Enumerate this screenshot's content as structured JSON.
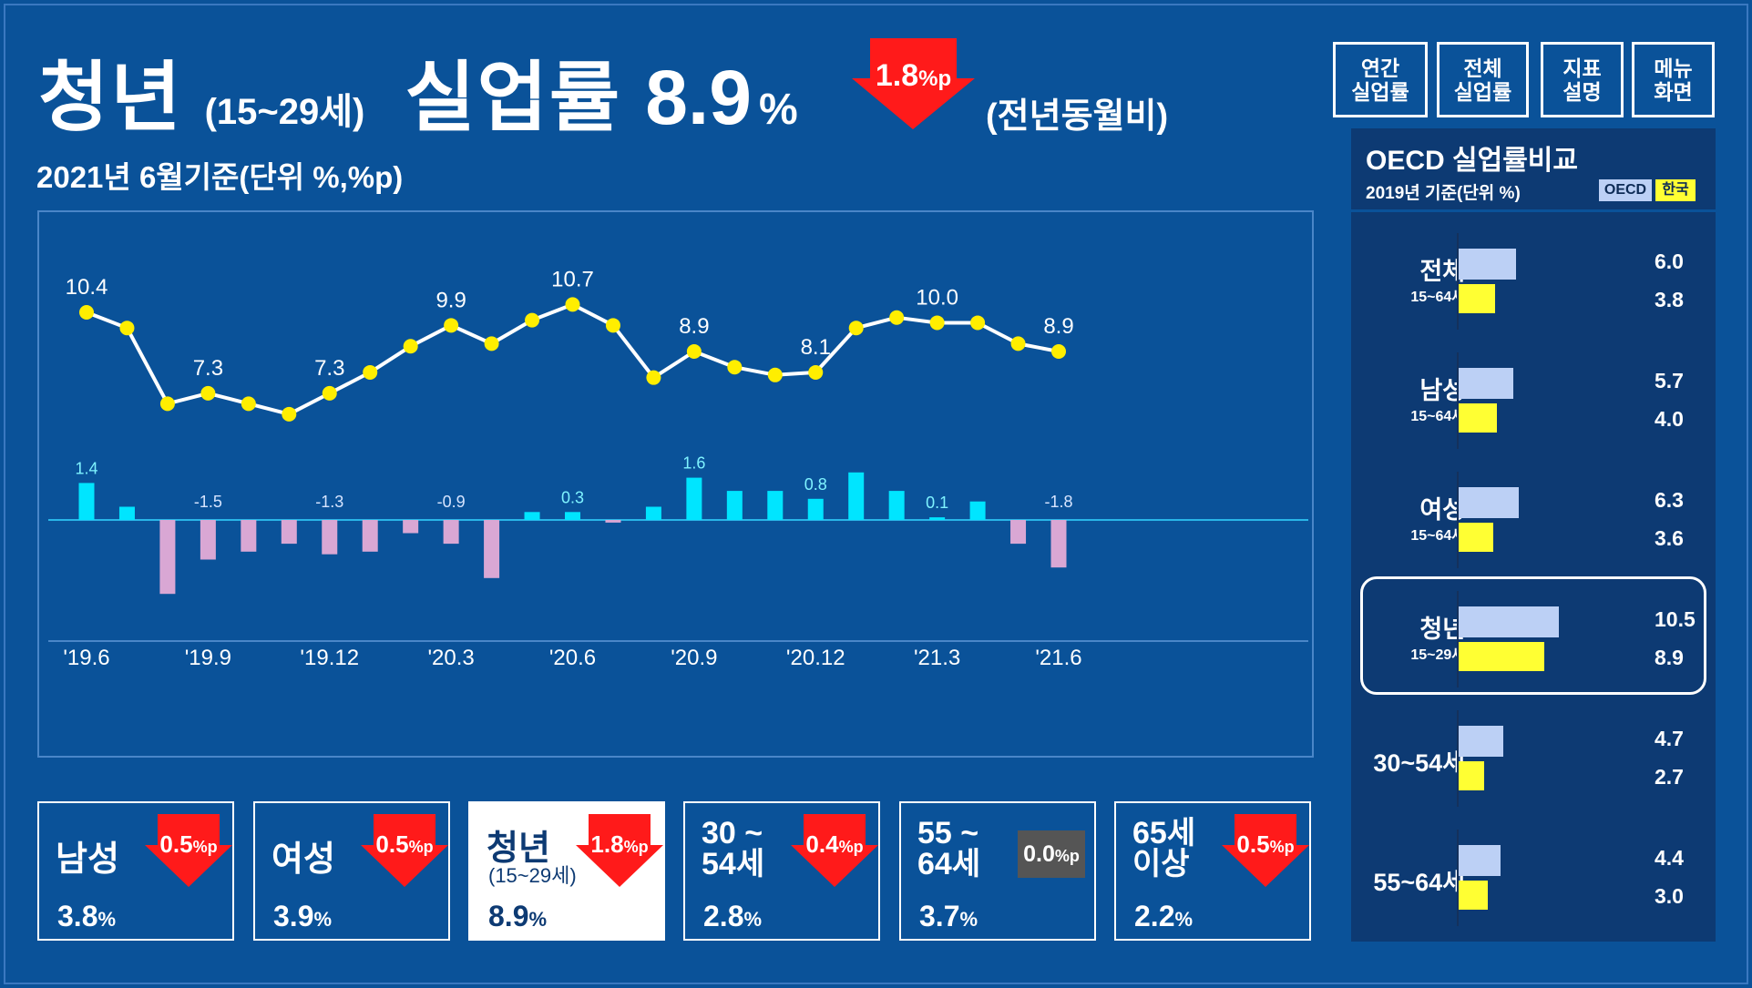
{
  "header": {
    "title_word1": "청년",
    "title_age": "(15~29세)",
    "title_word2": "실업률",
    "value": "8.9",
    "value_unit": "%",
    "change": "1.8",
    "change_unit": "%p",
    "compare_note": "(전년동월비)",
    "subtitle": "2021년 6월기준(단위 %,%p)"
  },
  "menu": [
    {
      "label": "연간\n실업률"
    },
    {
      "label": "전체\n실업률"
    },
    {
      "label": "지표\n설명"
    },
    {
      "label": "메뉴\n화면"
    }
  ],
  "chart_data": {
    "type": "line+bar",
    "x": [
      "'19.6",
      "'19.7",
      "'19.8",
      "'19.9",
      "'19.10",
      "'19.11",
      "'19.12",
      "'20.1",
      "'20.2",
      "'20.3",
      "'20.4",
      "'20.5",
      "'20.6",
      "'20.7",
      "'20.8",
      "'20.9",
      "'20.10",
      "'20.11",
      "'20.12",
      "'21.1",
      "'21.2",
      "'21.3",
      "'21.4",
      "'21.5",
      "'21.6"
    ],
    "xtick_labels": [
      "'19.6",
      "",
      "",
      "'19.9",
      "",
      "",
      "'19.12",
      "",
      "",
      "'20.3",
      "",
      "",
      "'20.6",
      "",
      "",
      "'20.9",
      "",
      "",
      "'20.12",
      "",
      "",
      "'21.3",
      "",
      "",
      "'21.6"
    ],
    "series": [
      {
        "values": [
          10.4,
          9.8,
          6.9,
          7.3,
          6.9,
          6.5,
          7.3,
          8.1,
          9.1,
          9.9,
          9.2,
          10.1,
          10.7,
          9.9,
          7.9,
          8.9,
          8.3,
          8.0,
          8.1,
          9.8,
          10.2,
          10.0,
          10.0,
          9.2,
          8.9
        ],
        "labels": [
          "10.4",
          "",
          "",
          "7.3",
          "",
          "",
          "7.3",
          "",
          "",
          "9.9",
          "",
          "",
          "10.7",
          "",
          "",
          "8.9",
          "",
          "",
          "8.1",
          "",
          "",
          "10.0",
          "",
          "",
          "8.9"
        ],
        "color": "#ffffff",
        "marker_color": "#ffee00"
      },
      {
        "values": [
          1.4,
          0.5,
          -2.8,
          -1.5,
          -1.2,
          -0.9,
          -1.3,
          -1.2,
          -0.5,
          -0.9,
          -2.2,
          0.3,
          0.3,
          -0.1,
          0.5,
          1.6,
          1.1,
          1.1,
          0.8,
          1.8,
          1.1,
          0.1,
          0.7,
          -0.9,
          -1.8
        ],
        "labels": [
          "1.4",
          "",
          "",
          "-1.5",
          "",
          "",
          "-1.3",
          "",
          "",
          "-0.9",
          "",
          "",
          "0.3",
          "",
          "",
          "1.6",
          "",
          "",
          "0.8",
          "",
          "",
          "0.1",
          "",
          "",
          "-1.8"
        ],
        "positive_color": "#00e5ff",
        "negative_color": "#d9a7d4"
      }
    ]
  },
  "oecd": {
    "title": "OECD 실업률비교",
    "subtitle": "2019년 기준(단위 %)",
    "legend_oecd": "OECD",
    "legend_korea": "한국",
    "groups": [
      {
        "name": "전체",
        "age": "15~64세",
        "oecd": 6.0,
        "korea": 3.8,
        "oecd_label": "6.0",
        "korea_label": "3.8"
      },
      {
        "name": "남성",
        "age": "15~64세",
        "oecd": 5.7,
        "korea": 4.0,
        "oecd_label": "5.7",
        "korea_label": "4.0"
      },
      {
        "name": "여성",
        "age": "15~64세",
        "oecd": 6.3,
        "korea": 3.6,
        "oecd_label": "6.3",
        "korea_label": "3.6"
      },
      {
        "name": "청년",
        "age": "15~29세",
        "oecd": 10.5,
        "korea": 8.9,
        "oecd_label": "10.5",
        "korea_label": "8.9"
      },
      {
        "name": "30~54세",
        "age": "",
        "oecd": 4.7,
        "korea": 2.7,
        "oecd_label": "4.7",
        "korea_label": "2.7"
      },
      {
        "name": "55~64세",
        "age": "",
        "oecd": 4.4,
        "korea": 3.0,
        "oecd_label": "4.4",
        "korea_label": "3.0"
      }
    ]
  },
  "cards": [
    {
      "name": "남성",
      "sub": "",
      "value": "3.8",
      "unit": "%",
      "change": "0.5",
      "change_unit": "%p",
      "direction": "down"
    },
    {
      "name": "여성",
      "sub": "",
      "value": "3.9",
      "unit": "%",
      "change": "0.5",
      "change_unit": "%p",
      "direction": "down"
    },
    {
      "name": "청년",
      "sub": "(15~29세)",
      "value": "8.9",
      "unit": "%",
      "change": "1.8",
      "change_unit": "%p",
      "direction": "down",
      "active": true
    },
    {
      "name": "30 ~\n54세",
      "sub": "",
      "value": "2.8",
      "unit": "%",
      "change": "0.4",
      "change_unit": "%p",
      "direction": "down"
    },
    {
      "name": "55 ~\n64세",
      "sub": "",
      "value": "3.7",
      "unit": "%",
      "change": "0.0",
      "change_unit": "%p",
      "direction": "flat"
    },
    {
      "name": "65세\n이상",
      "sub": "",
      "value": "2.2",
      "unit": "%",
      "change": "0.5",
      "change_unit": "%p",
      "direction": "down"
    }
  ],
  "colors": {
    "background": "#0a5299",
    "panel": "#0d3a73",
    "down_arrow": "#ff1a1a",
    "flat": "#555555"
  }
}
